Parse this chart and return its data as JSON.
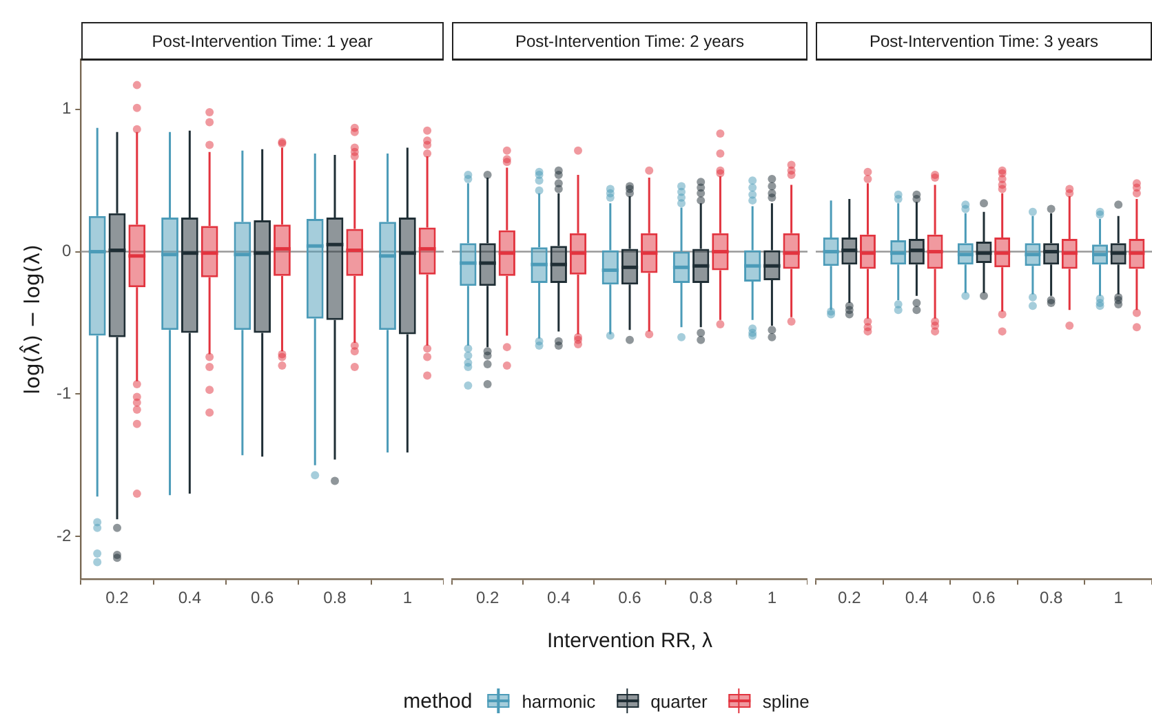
{
  "chart_data": [
    {
      "type": "box",
      "title": "Post-Intervention Time: 1 year",
      "ylabel": "log(λ̂) − log(λ)",
      "categories": [
        "0.2",
        "0.4",
        "0.6",
        "0.8",
        "1"
      ],
      "ylim": [
        -2.3,
        1.35
      ],
      "yticks": [
        -2,
        -1,
        0,
        1
      ],
      "ref_lines": [
        {
          "axis": "y",
          "value": 0,
          "color": "#999999"
        }
      ],
      "series": [
        {
          "color": "#4b9bb8",
          "boxes": [
            {
              "low": -1.72,
              "q1": -0.59,
              "median": 0.0,
              "q3": 0.25,
              "high": 0.87,
              "outliers": [
                -1.9,
                -1.94,
                -2.12,
                -2.18
              ]
            },
            {
              "low": -1.71,
              "q1": -0.55,
              "median": -0.02,
              "q3": 0.24,
              "high": 0.84
            },
            {
              "low": -1.43,
              "q1": -0.55,
              "median": -0.02,
              "q3": 0.21,
              "high": 0.71
            },
            {
              "low": -1.5,
              "q1": -0.47,
              "median": 0.04,
              "q3": 0.23,
              "high": 0.69,
              "outliers": [
                -1.57
              ]
            },
            {
              "low": -1.41,
              "q1": -0.55,
              "median": -0.03,
              "q3": 0.21,
              "high": 0.69
            }
          ]
        },
        {
          "color": "#1f2e35",
          "boxes": [
            {
              "low": -1.88,
              "q1": -0.6,
              "median": 0.01,
              "q3": 0.27,
              "high": 0.84,
              "outliers": [
                -1.94,
                -2.13,
                -2.15
              ]
            },
            {
              "low": -1.7,
              "q1": -0.57,
              "median": -0.01,
              "q3": 0.24,
              "high": 0.85
            },
            {
              "low": -1.44,
              "q1": -0.57,
              "median": -0.01,
              "q3": 0.22,
              "high": 0.72
            },
            {
              "low": -1.46,
              "q1": -0.48,
              "median": 0.05,
              "q3": 0.24,
              "high": 0.68,
              "outliers": [
                -1.61
              ]
            },
            {
              "low": -1.41,
              "q1": -0.58,
              "median": -0.01,
              "q3": 0.24,
              "high": 0.73
            }
          ]
        },
        {
          "color": "#e2343f",
          "boxes": [
            {
              "low": -0.91,
              "q1": -0.25,
              "median": -0.03,
              "q3": 0.19,
              "high": 0.84,
              "outliers": [
                1.17,
                1.01,
                0.86,
                -0.93,
                -1.02,
                -1.06,
                -1.11,
                -1.21,
                -1.7
              ]
            },
            {
              "low": -0.72,
              "q1": -0.18,
              "median": -0.01,
              "q3": 0.18,
              "high": 0.7,
              "outliers": [
                0.98,
                0.91,
                0.75,
                -0.74,
                -0.81,
                -0.97,
                -1.13
              ]
            },
            {
              "low": -0.7,
              "q1": -0.17,
              "median": 0.02,
              "q3": 0.19,
              "high": 0.73,
              "outliers": [
                0.77,
                0.76,
                -0.72,
                -0.74,
                -0.8
              ]
            },
            {
              "low": -0.64,
              "q1": -0.17,
              "median": 0.01,
              "q3": 0.16,
              "high": 0.64,
              "outliers": [
                0.87,
                0.84,
                0.73,
                0.7,
                0.67,
                -0.66,
                -0.7,
                -0.81
              ]
            },
            {
              "low": -0.66,
              "q1": -0.16,
              "median": 0.02,
              "q3": 0.17,
              "high": 0.67,
              "outliers": [
                0.85,
                0.78,
                0.75,
                0.69,
                -0.68,
                -0.74,
                -0.87
              ]
            }
          ]
        }
      ]
    },
    {
      "type": "box",
      "title": "Post-Intervention Time: 2 years",
      "xlabel": "Intervention RR, λ",
      "legend": "bottom",
      "legend_title": "method",
      "tick_labels": "x",
      "categories": [
        "0.2",
        "0.4",
        "0.6",
        "0.8",
        "1"
      ],
      "ylim": [
        -2.3,
        1.35
      ],
      "yticks": [
        -2,
        -1,
        0,
        1
      ],
      "ref_lines": [
        {
          "axis": "y",
          "value": 0,
          "color": "#999999"
        }
      ],
      "series": [
        {
          "name": "harmonic",
          "color": "#4b9bb8",
          "boxes": [
            {
              "low": -0.66,
              "q1": -0.24,
              "median": -0.08,
              "q3": 0.06,
              "high": 0.48,
              "outliers": [
                0.54,
                0.51,
                -0.68,
                -0.73,
                -0.78,
                -0.81,
                -0.94
              ]
            },
            {
              "low": -0.61,
              "q1": -0.22,
              "median": -0.09,
              "q3": 0.03,
              "high": 0.41,
              "outliers": [
                0.56,
                0.54,
                0.5,
                0.43,
                -0.63,
                -0.66
              ]
            },
            {
              "low": -0.58,
              "q1": -0.23,
              "median": -0.13,
              "q3": 0.01,
              "high": 0.34,
              "outliers": [
                0.44,
                0.41,
                0.38,
                -0.59
              ]
            },
            {
              "low": -0.53,
              "q1": -0.22,
              "median": -0.11,
              "q3": 0.0,
              "high": 0.31,
              "outliers": [
                0.46,
                0.42,
                0.38,
                0.34,
                -0.6
              ]
            },
            {
              "low": -0.48,
              "q1": -0.21,
              "median": -0.1,
              "q3": 0.01,
              "high": 0.32,
              "outliers": [
                0.5,
                0.45,
                0.4,
                0.36,
                -0.54,
                -0.57,
                -0.59
              ]
            }
          ]
        },
        {
          "name": "quarter",
          "color": "#1f2e35",
          "boxes": [
            {
              "low": -0.67,
              "q1": -0.24,
              "median": -0.08,
              "q3": 0.06,
              "high": 0.52,
              "outliers": [
                0.54,
                -0.7,
                -0.73,
                -0.79,
                -0.93
              ]
            },
            {
              "low": -0.56,
              "q1": -0.22,
              "median": -0.09,
              "q3": 0.04,
              "high": 0.41,
              "outliers": [
                0.57,
                0.54,
                0.48,
                0.44,
                -0.63,
                -0.66
              ]
            },
            {
              "low": -0.55,
              "q1": -0.23,
              "median": -0.11,
              "q3": 0.02,
              "high": 0.39,
              "outliers": [
                0.46,
                0.44,
                0.41,
                -0.62
              ]
            },
            {
              "low": -0.53,
              "q1": -0.22,
              "median": -0.1,
              "q3": 0.02,
              "high": 0.34,
              "outliers": [
                0.49,
                0.45,
                0.41,
                0.36,
                -0.57,
                -0.62
              ]
            },
            {
              "low": -0.52,
              "q1": -0.2,
              "median": -0.1,
              "q3": 0.01,
              "high": 0.34,
              "outliers": [
                0.51,
                0.46,
                0.41,
                0.38,
                -0.55,
                -0.6
              ]
            }
          ]
        },
        {
          "name": "spline",
          "color": "#e2343f",
          "boxes": [
            {
              "low": -0.59,
              "q1": -0.17,
              "median": -0.01,
              "q3": 0.15,
              "high": 0.59,
              "outliers": [
                0.71,
                0.65,
                0.63,
                -0.67,
                -0.8
              ]
            },
            {
              "low": -0.58,
              "q1": -0.16,
              "median": -0.01,
              "q3": 0.13,
              "high": 0.54,
              "outliers": [
                0.71,
                -0.6,
                -0.62,
                -0.65
              ]
            },
            {
              "low": -0.56,
              "q1": -0.15,
              "median": -0.01,
              "q3": 0.13,
              "high": 0.52,
              "outliers": [
                0.57,
                -0.58
              ]
            },
            {
              "low": -0.48,
              "q1": -0.13,
              "median": 0.0,
              "q3": 0.13,
              "high": 0.53,
              "outliers": [
                0.83,
                0.69,
                0.57,
                0.55,
                -0.51
              ]
            },
            {
              "low": -0.46,
              "q1": -0.12,
              "median": -0.01,
              "q3": 0.13,
              "high": 0.47,
              "outliers": [
                0.61,
                0.57,
                0.54,
                -0.49
              ]
            }
          ]
        }
      ]
    },
    {
      "type": "box",
      "title": "Post-Intervention Time: 3 years",
      "tick_labels": "x",
      "categories": [
        "0.2",
        "0.4",
        "0.6",
        "0.8",
        "1"
      ],
      "ylim": [
        -2.3,
        1.35
      ],
      "yticks": [
        -2,
        -1,
        0,
        1
      ],
      "ref_lines": [
        {
          "axis": "y",
          "value": 0,
          "color": "#999999"
        }
      ],
      "series": [
        {
          "color": "#4b9bb8",
          "boxes": [
            {
              "low": -0.41,
              "q1": -0.1,
              "median": 0.0,
              "q3": 0.1,
              "high": 0.36,
              "outliers": [
                -0.42,
                -0.44
              ]
            },
            {
              "low": -0.34,
              "q1": -0.09,
              "median": -0.01,
              "q3": 0.08,
              "high": 0.34,
              "outliers": [
                0.4,
                0.37,
                -0.37,
                -0.41
              ]
            },
            {
              "low": -0.29,
              "q1": -0.09,
              "median": -0.02,
              "q3": 0.06,
              "high": 0.27,
              "outliers": [
                0.33,
                0.3,
                -0.31
              ]
            },
            {
              "low": -0.3,
              "q1": -0.1,
              "median": -0.02,
              "q3": 0.06,
              "high": 0.25,
              "outliers": [
                0.28,
                -0.32,
                -0.38
              ]
            },
            {
              "low": -0.31,
              "q1": -0.09,
              "median": -0.02,
              "q3": 0.05,
              "high": 0.23,
              "outliers": [
                0.28,
                0.26,
                -0.33,
                -0.36,
                -0.38
              ]
            }
          ]
        },
        {
          "color": "#1f2e35",
          "boxes": [
            {
              "low": -0.36,
              "q1": -0.09,
              "median": 0.01,
              "q3": 0.1,
              "high": 0.37,
              "outliers": [
                -0.38,
                -0.41,
                -0.44
              ]
            },
            {
              "low": -0.31,
              "q1": -0.09,
              "median": 0.01,
              "q3": 0.09,
              "high": 0.35,
              "outliers": [
                0.4,
                0.37,
                -0.36,
                -0.41
              ]
            },
            {
              "low": -0.29,
              "q1": -0.08,
              "median": -0.01,
              "q3": 0.07,
              "high": 0.28,
              "outliers": [
                0.34,
                -0.31
              ]
            },
            {
              "low": -0.31,
              "q1": -0.09,
              "median": 0.0,
              "q3": 0.06,
              "high": 0.27,
              "outliers": [
                0.3,
                -0.34,
                -0.36
              ]
            },
            {
              "low": -0.3,
              "q1": -0.09,
              "median": -0.01,
              "q3": 0.06,
              "high": 0.25,
              "outliers": [
                0.33,
                -0.32,
                -0.34,
                -0.37
              ]
            }
          ]
        },
        {
          "color": "#e2343f",
          "boxes": [
            {
              "low": -0.47,
              "q1": -0.12,
              "median": -0.01,
              "q3": 0.12,
              "high": 0.48,
              "outliers": [
                0.56,
                0.51,
                -0.49,
                -0.53,
                -0.56
              ]
            },
            {
              "low": -0.47,
              "q1": -0.12,
              "median": 0.0,
              "q3": 0.12,
              "high": 0.47,
              "outliers": [
                0.54,
                0.52,
                -0.49,
                -0.52,
                -0.56
              ]
            },
            {
              "low": -0.42,
              "q1": -0.11,
              "median": -0.01,
              "q3": 0.1,
              "high": 0.41,
              "outliers": [
                0.57,
                0.55,
                0.51,
                0.47,
                0.44,
                -0.44,
                -0.56
              ]
            },
            {
              "low": -0.41,
              "q1": -0.12,
              "median": -0.01,
              "q3": 0.09,
              "high": 0.39,
              "outliers": [
                0.44,
                0.41,
                -0.52
              ]
            },
            {
              "low": -0.41,
              "q1": -0.12,
              "median": -0.01,
              "q3": 0.09,
              "high": 0.37,
              "outliers": [
                0.48,
                0.45,
                0.41,
                -0.43,
                -0.53
              ]
            }
          ]
        }
      ]
    }
  ]
}
